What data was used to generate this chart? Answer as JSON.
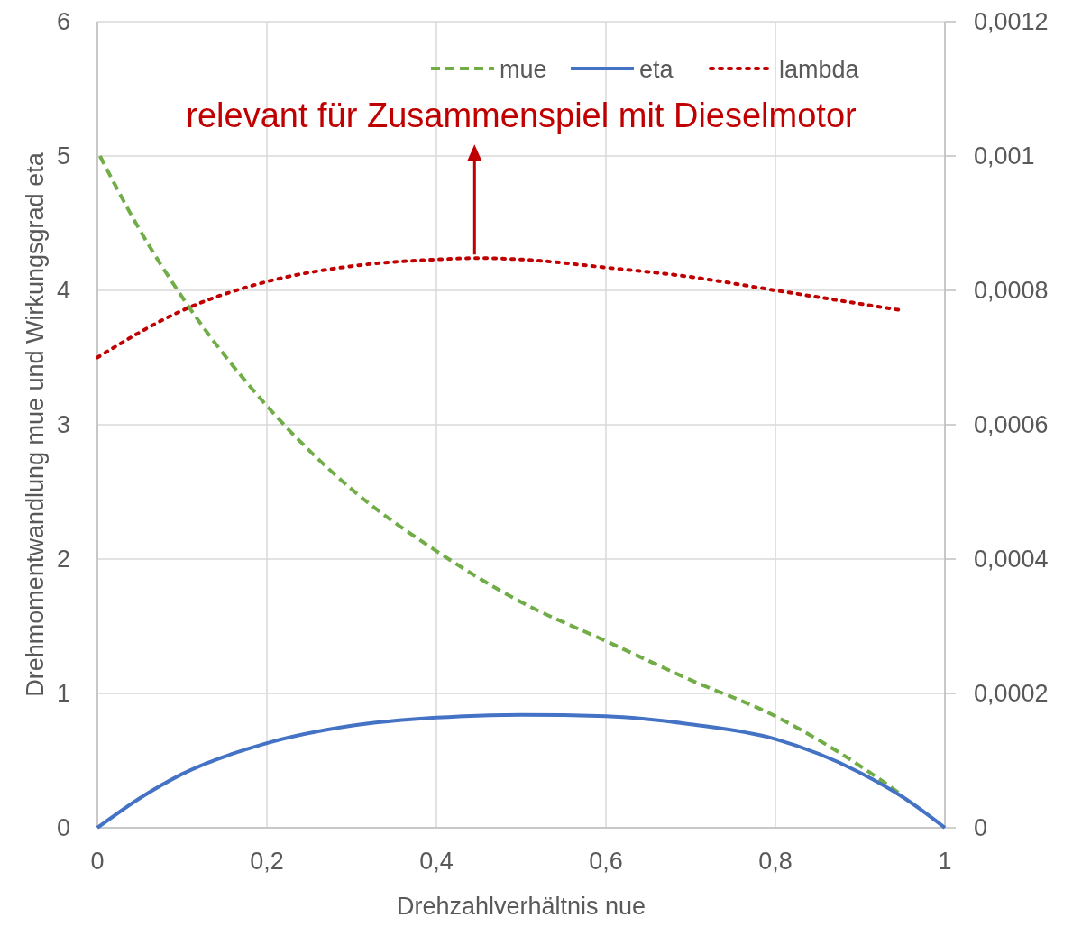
{
  "chart_data": {
    "type": "line",
    "xlabel": "Drehzahlverhältnis nue",
    "ylabel": "Drehmomentwandlung mue  und Wirkungsgrad eta",
    "xlim": [
      0,
      1
    ],
    "xticks": [
      0,
      {
        "value": 0.2,
        "label": "0,2"
      },
      {
        "value": 0.4,
        "label": "0,4"
      },
      {
        "value": 0.6,
        "label": "0,6"
      },
      {
        "value": 0.8,
        "label": "0,8"
      },
      1
    ],
    "ylim": [
      0,
      6
    ],
    "yticks": [
      0,
      1,
      2,
      3,
      4,
      5,
      6
    ],
    "y2lim": [
      0,
      0.0012
    ],
    "y2ticks": [
      0,
      {
        "value": 0.0002,
        "label": "0,0002"
      },
      {
        "value": 0.0004,
        "label": "0,0004"
      },
      {
        "value": 0.0006,
        "label": "0,0006"
      },
      {
        "value": 0.0008,
        "label": "0,0008"
      },
      {
        "value": 0.001,
        "label": "0,001"
      },
      {
        "value": 0.0012,
        "label": "0,0012"
      }
    ],
    "grid": true,
    "legend": "top right",
    "series": [
      {
        "name": "mue",
        "color": "#70ad47",
        "line_style": "dashed",
        "x": [
          0.003,
          0.05,
          0.1,
          0.2,
          0.3,
          0.4,
          0.5,
          0.6,
          0.7,
          0.8,
          0.9,
          0.95
        ],
        "values": [
          5.0,
          4.45,
          3.95,
          3.14,
          2.52,
          2.06,
          1.68,
          1.39,
          1.1,
          0.83,
          0.46,
          0.24
        ]
      },
      {
        "name": "eta",
        "color": "#4472c4",
        "line_style": "solid",
        "x": [
          0,
          0.05,
          0.1,
          0.2,
          0.3,
          0.4,
          0.5,
          0.6,
          0.7,
          0.8,
          0.9,
          0.95,
          1
        ],
        "values": [
          0,
          0.22,
          0.4,
          0.63,
          0.76,
          0.82,
          0.84,
          0.83,
          0.77,
          0.66,
          0.41,
          0.23,
          0
        ]
      },
      {
        "name": "lambda",
        "color": "#c00000",
        "line_style": "dotted",
        "axis": "y2",
        "x": [
          0,
          0.1,
          0.2,
          0.3,
          0.4,
          0.45,
          0.5,
          0.6,
          0.7,
          0.8,
          0.9,
          0.95
        ],
        "values": [
          0.0007,
          0.00077,
          0.000813,
          0.000836,
          0.000846,
          0.000848,
          0.000846,
          0.000834,
          0.00082,
          0.0008,
          0.00078,
          0.00077
        ]
      }
    ],
    "annotations": [
      {
        "text": "relevant für Zusammenspiel mit Dieselmotor",
        "x": 0.445,
        "y": 4.24
      }
    ]
  }
}
